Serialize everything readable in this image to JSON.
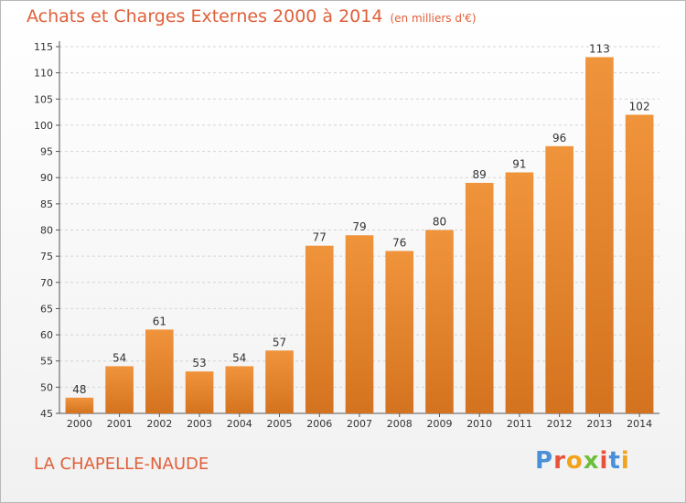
{
  "chart_data": {
    "type": "bar",
    "title": "Achats et Charges Externes 2000 à 2014",
    "subtitle": "(en milliers d'€)",
    "xlabel": "",
    "ylabel": "",
    "categories": [
      "2000",
      "2001",
      "2002",
      "2003",
      "2004",
      "2005",
      "2006",
      "2007",
      "2008",
      "2009",
      "2010",
      "2011",
      "2012",
      "2013",
      "2014"
    ],
    "values": [
      48,
      54,
      61,
      53,
      54,
      57,
      77,
      79,
      76,
      80,
      89,
      91,
      96,
      113,
      102
    ],
    "ylim": [
      45,
      115
    ],
    "yticks": [
      45,
      50,
      55,
      60,
      65,
      70,
      75,
      80,
      85,
      90,
      95,
      100,
      105,
      110,
      115
    ],
    "grid": "horizontal",
    "bar_color": "#f0943c",
    "bar_color_dark": "#d4731f"
  },
  "location_label": "LA CHAPELLE-NAUDE",
  "logo_text": "Proxiti",
  "logo_colors": [
    "#4a90d9",
    "#e8523a",
    "#f2a21b",
    "#6cbf3c",
    "#e8523a",
    "#4a90d9",
    "#f2a21b"
  ]
}
